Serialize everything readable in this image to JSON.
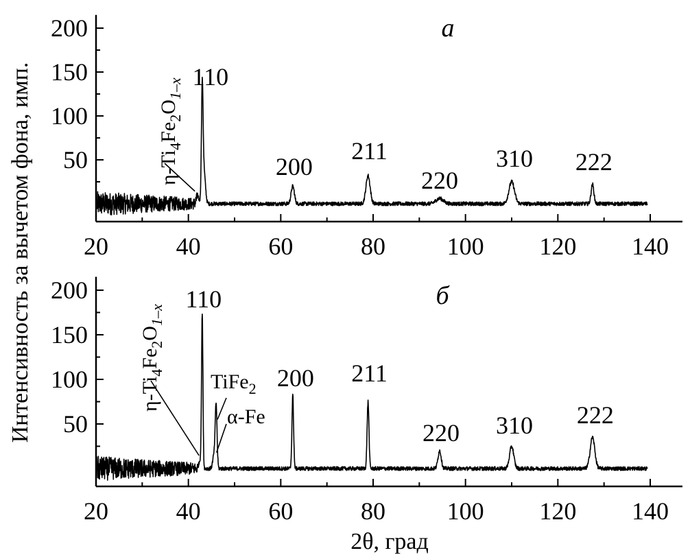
{
  "chart_data": {
    "type": "line",
    "xlabel": "2θ, град",
    "ylabel": "Интенсивность за вычетом фона, имп.",
    "xlim": [
      20,
      140
    ],
    "xticks": [
      20,
      40,
      60,
      80,
      100,
      120,
      140
    ],
    "yticks": [
      50,
      100,
      150,
      200
    ],
    "ylim": [
      -20,
      215
    ],
    "grid": false,
    "panels": [
      {
        "panel_label": "а",
        "series": [
          {
            "peaks": [
              {
                "x": 42.0,
                "y": 8,
                "w": 0.3
              },
              {
                "x": 43.0,
                "y": 128,
                "w": 0.18
              },
              {
                "x": 43.4,
                "y": 35,
                "w": 0.3
              },
              {
                "x": 62.6,
                "y": 20,
                "w": 0.35
              },
              {
                "x": 78.9,
                "y": 32,
                "w": 0.45
              },
              {
                "x": 94.4,
                "y": 6,
                "w": 0.8
              },
              {
                "x": 110.0,
                "y": 25,
                "w": 0.6
              },
              {
                "x": 127.5,
                "y": 22,
                "w": 0.3
              }
            ]
          }
        ],
        "peak_labels": [
          {
            "text": "110",
            "x": 43.0
          },
          {
            "text": "200",
            "x": 62.6
          },
          {
            "text": "211",
            "x": 78.9
          },
          {
            "text": "220",
            "x": 94.4
          },
          {
            "text": "310",
            "x": 110.0
          },
          {
            "text": "222",
            "x": 127.5
          }
        ],
        "phase_labels": [
          {
            "main": "η-Ti",
            "sub1": "4",
            "mid": "Fe",
            "sub2": "2",
            "tail": "O",
            "sub3": "1–x",
            "x": 42.0
          }
        ]
      },
      {
        "panel_label": "б",
        "series": [
          {
            "peaks": [
              {
                "x": 42.6,
                "y": 10,
                "w": 0.3
              },
              {
                "x": 43.0,
                "y": 170,
                "w": 0.15
              },
              {
                "x": 45.5,
                "y": 14,
                "w": 0.25
              },
              {
                "x": 46.0,
                "y": 72,
                "w": 0.2
              },
              {
                "x": 62.6,
                "y": 82,
                "w": 0.18
              },
              {
                "x": 78.9,
                "y": 75,
                "w": 0.2
              },
              {
                "x": 94.4,
                "y": 20,
                "w": 0.35
              },
              {
                "x": 110.0,
                "y": 25,
                "w": 0.45
              },
              {
                "x": 127.5,
                "y": 35,
                "w": 0.5
              }
            ]
          }
        ],
        "peak_labels": [
          {
            "text": "110",
            "x": 43.0
          },
          {
            "text": "200",
            "x": 62.6
          },
          {
            "text": "211",
            "x": 78.9
          },
          {
            "text": "220",
            "x": 94.4
          },
          {
            "text": "310",
            "x": 110.0
          },
          {
            "text": "222",
            "x": 127.5
          }
        ],
        "phase_labels": [
          {
            "main": "η-Ti",
            "sub1": "4",
            "mid": "Fe",
            "sub2": "2",
            "tail": "O",
            "sub3": "1–x",
            "x": 42.6
          },
          {
            "main": "TiFe",
            "sub1": "2",
            "x": 46.0
          },
          {
            "main": "α-Fe",
            "x": 45.5
          }
        ]
      }
    ]
  }
}
